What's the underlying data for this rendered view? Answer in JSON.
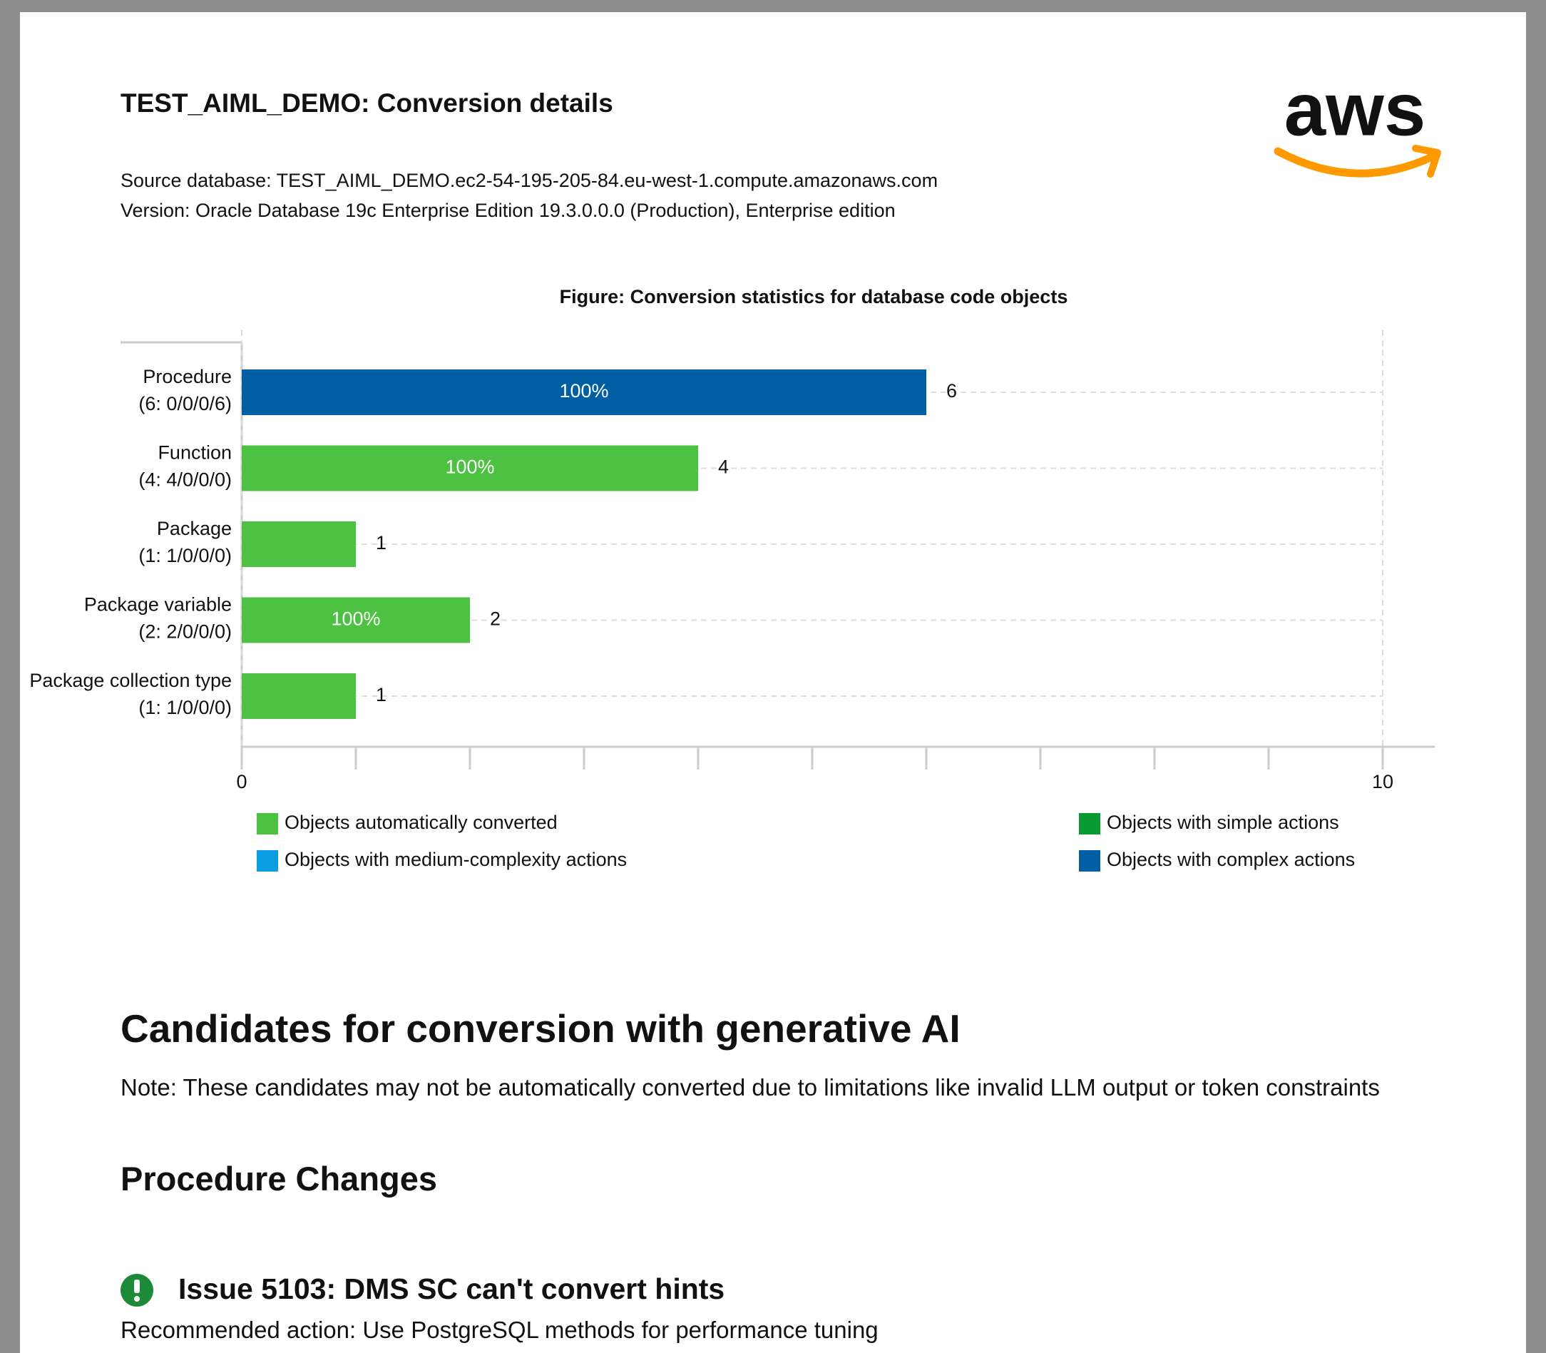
{
  "header": {
    "title": "TEST_AIML_DEMO: Conversion details",
    "source": "Source database: TEST_AIML_DEMO.ec2-54-195-205-84.eu-west-1.compute.amazonaws.com",
    "version": "Version: Oracle Database 19c Enterprise Edition 19.3.0.0.0 (Production), Enterprise edition",
    "logo": "aws"
  },
  "chart_data": {
    "type": "bar",
    "orientation": "horizontal",
    "title": "Figure: Conversion statistics for database code objects",
    "categories": [
      "Procedure",
      "Function",
      "Package",
      "Package variable",
      "Package collection type"
    ],
    "category_details": [
      "(6: 0/0/0/6)",
      "(4: 4/0/0/0)",
      "(1: 1/0/0/0)",
      "(2: 2/0/0/0)",
      "(1: 1/0/0/0)"
    ],
    "values": [
      6,
      4,
      1,
      2,
      1
    ],
    "colors": [
      "#005ea2",
      "#4cc142",
      "#4cc142",
      "#4cc142",
      "#4cc142"
    ],
    "percent_labels": [
      "100%",
      "100%",
      null,
      "100%",
      null
    ],
    "xlim": [
      0,
      10
    ],
    "xticks": [
      0,
      10
    ],
    "minor_xticks": [
      1,
      2,
      3,
      4,
      5,
      6,
      7,
      8,
      9
    ],
    "grid": true,
    "legend": [
      {
        "name": "Objects automatically converted",
        "color": "#4cc142"
      },
      {
        "name": "Objects with simple actions",
        "color": "#0a9a34"
      },
      {
        "name": "Objects with medium-complexity actions",
        "color": "#0a9ee0"
      },
      {
        "name": "Objects with complex actions",
        "color": "#005ea2"
      }
    ]
  },
  "section": {
    "heading": "Candidates for conversion with generative AI",
    "note": "Note: These candidates may not be automatically converted due to limitations like invalid LLM output or token constraints",
    "subheading": "Procedure Changes",
    "issue": {
      "title": "Issue 5103: DMS SC can't convert hints",
      "action": "Recommended action: Use PostgreSQL methods for performance tuning"
    }
  }
}
